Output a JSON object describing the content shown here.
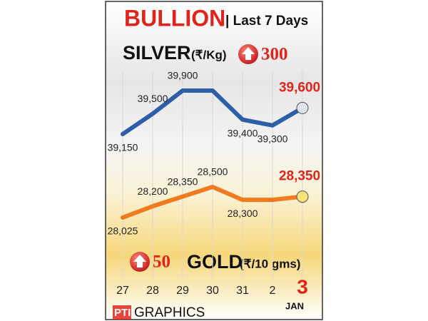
{
  "chart_data": {
    "type": "line",
    "title": "BULLION",
    "subtitle": "| Last 7 Days",
    "categories": [
      "27",
      "28",
      "29",
      "30",
      "31",
      "2",
      "3"
    ],
    "month_label": "JAN",
    "series": [
      {
        "name": "SILVER",
        "unit": "(₹/Kg)",
        "change": 300,
        "color": "#2d5fa6",
        "values": [
          39150,
          39500,
          39900,
          39900,
          39400,
          39300,
          39600
        ],
        "value_labels": [
          "39,150",
          "39,500",
          "39,900",
          null,
          "39,400",
          "39,300",
          "39,600"
        ]
      },
      {
        "name": "GOLD",
        "unit": "(₹/10 gms)",
        "change": 50,
        "color": "#f07a1e",
        "values": [
          28025,
          28200,
          28350,
          28500,
          28300,
          28300,
          28350
        ],
        "value_labels": [
          "28,025",
          "28,200",
          "28,350",
          "28,500",
          "28,300",
          null,
          "28,350"
        ]
      }
    ],
    "highlight_color": "#e0241b",
    "source": "PTI",
    "source_suffix": "GRAPHICS"
  }
}
